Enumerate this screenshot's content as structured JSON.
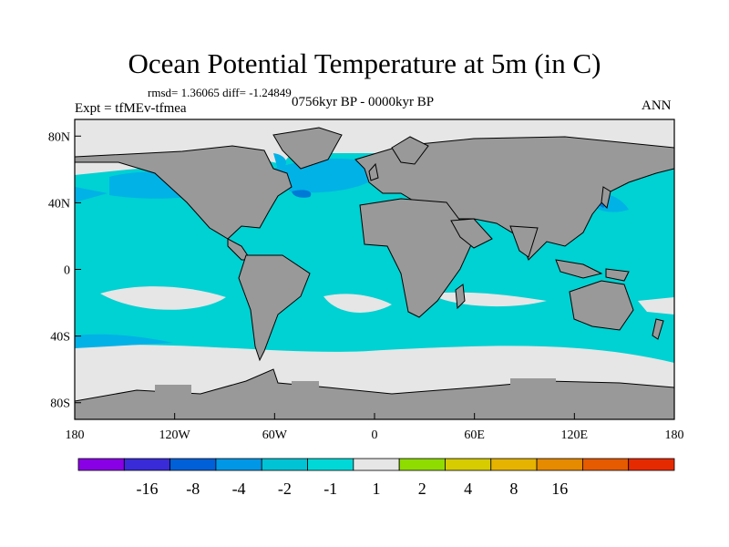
{
  "title": "Ocean Potential Temperature at 5m (in C)",
  "stats": "rmsd= 1.36065 diff= -1.24849",
  "experiment": "Expt = tfMEv-tfmea",
  "period": "0756kyr BP - 0000kyr BP",
  "season": "ANN",
  "colors": {
    "land": "#999999",
    "neutral": "#e6e6e6",
    "cyan": "#00d1d2",
    "lightblue": "#00b2e6",
    "midblue": "#0079d6"
  },
  "map_data": {
    "projection": "cylindrical-equidistant",
    "lon_range": [
      -180,
      180
    ],
    "lat_range": [
      -90,
      90
    ],
    "x_ticks": [
      "180",
      "120W",
      "60W",
      "0",
      "60E",
      "120E",
      "180"
    ],
    "y_ticks": [
      "80N",
      "40N",
      "0",
      "40S",
      "80S"
    ],
    "y_tick_lats": [
      80,
      40,
      0,
      -40,
      -80
    ]
  },
  "colorbar": {
    "labels": [
      "-16",
      "-8",
      "-4",
      "-2",
      "-1",
      "1",
      "2",
      "4",
      "8",
      "16"
    ],
    "colors": [
      "#8a00e6",
      "#3a2bd8",
      "#0060d8",
      "#0097e6",
      "#00c3d6",
      "#00d8d8",
      "#e6e6e6",
      "#8fdc00",
      "#d6cc00",
      "#e6b400",
      "#e68a00",
      "#e65a00",
      "#e62a00"
    ]
  }
}
